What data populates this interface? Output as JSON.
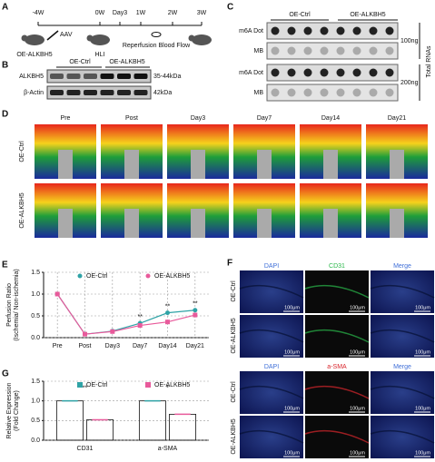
{
  "panel_a": {
    "label": "A",
    "timeline": [
      "-4W",
      "0W",
      "Day3",
      "1W",
      "2W",
      "3W"
    ],
    "aav": "AAV",
    "mouse": "OE-ALKBH5",
    "hli": "HLI",
    "reperfusion": "Reperfusion Blood Flow"
  },
  "panel_b": {
    "label": "B",
    "groups": [
      "OE-Ctrl",
      "OE-ALKBH5"
    ],
    "rows": [
      "ALKBH5",
      "β-Actin"
    ],
    "sizes": [
      "35-44kDa",
      "42kDa"
    ]
  },
  "panel_c": {
    "label": "C",
    "groups": [
      "OE-Ctrl",
      "OE-ALKBH5"
    ],
    "rows": [
      "m6A Dot",
      "MB",
      "m6A Dot",
      "MB"
    ],
    "amounts": [
      "100ng",
      "200ng"
    ],
    "side": "Total RNAs"
  },
  "panel_d": {
    "label": "D",
    "columns": [
      "Pre",
      "Post",
      "Day3",
      "Day7",
      "Day14",
      "Day21"
    ],
    "rows": [
      "OE-Ctrl",
      "OE-ALKBH5"
    ]
  },
  "panel_f": {
    "label": "F",
    "top_columns": [
      "DAPI",
      "CD31",
      "Merge"
    ],
    "bottom_columns": [
      "DAPI",
      "a-SMA",
      "Merge"
    ],
    "rows": [
      "OE-Ctrl",
      "OE-ALKBH5"
    ],
    "scale_bar": "100μm"
  },
  "chart_data": [
    {
      "label": "E",
      "type": "line",
      "ylabel": [
        "Perfusion Ratio",
        "(Ischemia/ Non-ischemia)"
      ],
      "categories": [
        "Pre",
        "Post",
        "Day3",
        "Day7",
        "Day14",
        "Day21"
      ],
      "series": [
        {
          "name": "OE-Ctrl",
          "color": "#2fa3a6",
          "values": [
            1.0,
            0.08,
            0.15,
            0.33,
            0.57,
            0.63
          ]
        },
        {
          "name": "OE-ALKBH5",
          "color": "#e85a9b",
          "values": [
            1.0,
            0.08,
            0.14,
            0.28,
            0.36,
            0.52
          ]
        }
      ],
      "ylim": [
        0,
        1.5
      ],
      "yticks": [
        {
          "value": 0,
          "label": "0.0"
        },
        0.5,
        {
          "value": 1,
          "label": "1.0"
        },
        1.5
      ],
      "grid": true,
      "annotations": [
        {
          "x": "Day7",
          "text": "**"
        },
        {
          "x": "Day14",
          "text": "**"
        },
        {
          "x": "Day21",
          "text": "**"
        }
      ]
    },
    {
      "label": "G",
      "type": "bar",
      "ylabel": [
        "Relative Expression",
        "(Fold Change)"
      ],
      "categories": [
        "CD31",
        "a-SMA"
      ],
      "series": [
        {
          "name": "OE-Ctrl",
          "color": "#2fa3a6",
          "values": [
            1.0,
            1.0
          ]
        },
        {
          "name": "OE-ALKBH5",
          "color": "#e85a9b",
          "values": [
            0.52,
            0.66
          ]
        }
      ],
      "ylim": [
        0,
        1.5
      ],
      "yticks": [
        {
          "value": 0,
          "label": "0.0"
        },
        0.5,
        {
          "value": 1,
          "label": "1.0"
        },
        1.5
      ],
      "grid": true,
      "annotations": [
        {
          "x": "CD31",
          "text": "**"
        },
        {
          "x": "a-SMA",
          "text": "*"
        }
      ]
    }
  ]
}
